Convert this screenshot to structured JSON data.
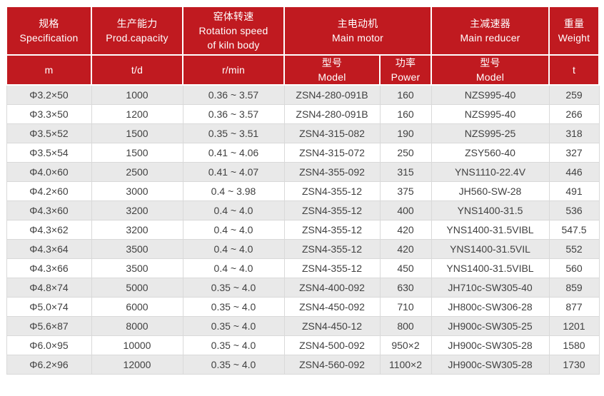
{
  "colors": {
    "header_bg": "#c01a20",
    "header_text": "#ffffff",
    "row_alt_bg": "#e9e9e9",
    "row_bg": "#ffffff",
    "body_text": "#414141",
    "grid_line": "#d9d9d9"
  },
  "table": {
    "header": {
      "groups": [
        {
          "zh": "规格",
          "en": "Specification"
        },
        {
          "zh": "生产能力",
          "en": "Prod.capacity"
        },
        {
          "zh": "窑体转速",
          "en": "Rotation speed",
          "en2": "of kiln body"
        },
        {
          "zh": "主电动机",
          "en": "Main motor"
        },
        {
          "zh": "主减速器",
          "en": "Main reducer"
        },
        {
          "zh": "重量",
          "en": "Weight"
        }
      ],
      "subs": [
        {
          "line1": "m"
        },
        {
          "line1": "t/d"
        },
        {
          "line1": "r/min"
        },
        {
          "line1": "型号",
          "line2": "Model"
        },
        {
          "line1": "功率",
          "line2": "Power"
        },
        {
          "line1": "型号",
          "line2": "Model"
        },
        {
          "line1": "t"
        }
      ]
    },
    "column_keys": [
      "spec",
      "capacity",
      "speed",
      "motor-model",
      "power",
      "reducer-model",
      "weight"
    ],
    "rows": [
      [
        "Φ3.2×50",
        "1000",
        "0.36 ~ 3.57",
        "ZSN4-280-091B",
        "160",
        "NZS995-40",
        "259"
      ],
      [
        "Φ3.3×50",
        "1200",
        "0.36 ~ 3.57",
        "ZSN4-280-091B",
        "160",
        "NZS995-40",
        "266"
      ],
      [
        "Φ3.5×52",
        "1500",
        "0.35 ~ 3.51",
        "ZSN4-315-082",
        "190",
        "NZS995-25",
        "318"
      ],
      [
        "Φ3.5×54",
        "1500",
        "0.41 ~ 4.06",
        "ZSN4-315-072",
        "250",
        "ZSY560-40",
        "327"
      ],
      [
        "Φ4.0×60",
        "2500",
        "0.41 ~ 4.07",
        "ZSN4-355-092",
        "315",
        "YNS1110-22.4V",
        "446"
      ],
      [
        "Φ4.2×60",
        "3000",
        "0.4 ~ 3.98",
        "ZSN4-355-12",
        "375",
        "JH560-SW-28",
        "491"
      ],
      [
        "Φ4.3×60",
        "3200",
        "0.4 ~ 4.0",
        "ZSN4-355-12",
        "400",
        "YNS1400-31.5",
        "536"
      ],
      [
        "Φ4.3×62",
        "3200",
        "0.4 ~ 4.0",
        "ZSN4-355-12",
        "420",
        "YNS1400-31.5VIBL",
        "547.5"
      ],
      [
        "Φ4.3×64",
        "3500",
        "0.4 ~ 4.0",
        "ZSN4-355-12",
        "420",
        "YNS1400-31.5VIL",
        "552"
      ],
      [
        "Φ4.3×66",
        "3500",
        "0.4 ~ 4.0",
        "ZSN4-355-12",
        "450",
        "YNS1400-31.5VIBL",
        "560"
      ],
      [
        "Φ4.8×74",
        "5000",
        "0.35 ~ 4.0",
        "ZSN4-400-092",
        "630",
        "JH710c-SW305-40",
        "859"
      ],
      [
        "Φ5.0×74",
        "6000",
        "0.35 ~ 4.0",
        "ZSN4-450-092",
        "710",
        "JH800c-SW306-28",
        "877"
      ],
      [
        "Φ5.6×87",
        "8000",
        "0.35 ~ 4.0",
        "ZSN4-450-12",
        "800",
        "JH900c-SW305-25",
        "1201"
      ],
      [
        "Φ6.0×95",
        "10000",
        "0.35 ~ 4.0",
        "ZSN4-500-092",
        "950×2",
        "JH900c-SW305-28",
        "1580"
      ],
      [
        "Φ6.2×96",
        "12000",
        "0.35 ~ 4.0",
        "ZSN4-560-092",
        "1100×2",
        "JH900c-SW305-28",
        "1730"
      ]
    ]
  }
}
